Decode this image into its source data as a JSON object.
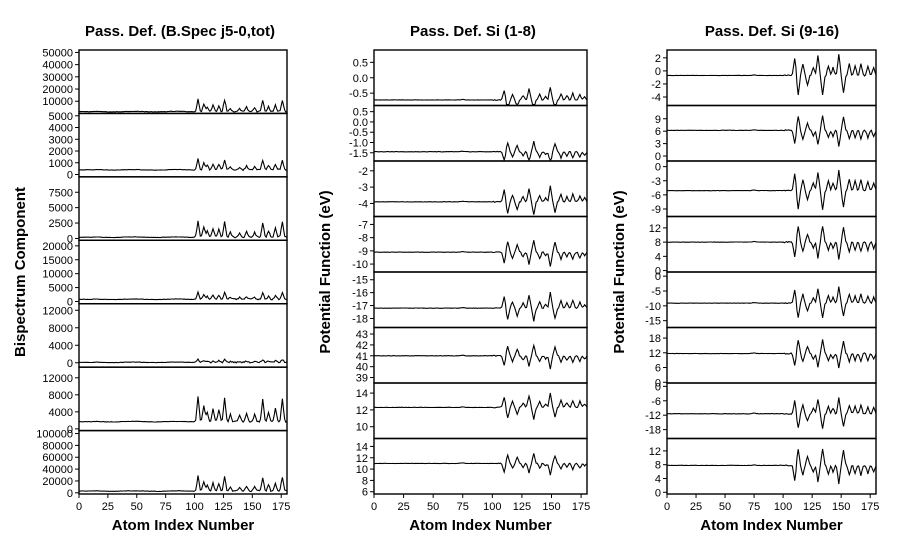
{
  "chart_data": [
    {
      "type": "line",
      "title": "Pass. Def. (B.Spec j5-0,tot)",
      "xlabel": "Atom Index Number",
      "ylabel": "Bispectrum Component",
      "x_ticks": [
        "0",
        "25",
        "50",
        "75",
        "100",
        "125",
        "150",
        "175"
      ],
      "xlim": [
        0,
        180
      ],
      "panels": [
        {
          "y_ticks": [
            "50000",
            "40000",
            "30000",
            "20000",
            "10000"
          ],
          "ylim": [
            0,
            52000
          ],
          "baseline": 1500,
          "peak": 10000
        },
        {
          "y_ticks": [
            "5000",
            "4000",
            "3000",
            "2000",
            "1000",
            "0"
          ],
          "ylim": [
            -200,
            5200
          ],
          "baseline": 400,
          "peak": 900
        },
        {
          "y_ticks": [
            "7500",
            "5000",
            "2500",
            "0"
          ],
          "ylim": [
            -300,
            10000
          ],
          "baseline": 200,
          "peak": 2700
        },
        {
          "y_ticks": [
            "20000",
            "15000",
            "10000",
            "5000",
            "0"
          ],
          "ylim": [
            -800,
            22000
          ],
          "baseline": 800,
          "peak": 2600
        },
        {
          "y_ticks": [
            "12000",
            "8000",
            "4000",
            "0"
          ],
          "ylim": [
            -1000,
            13500
          ],
          "baseline": 100,
          "peak": 700
        },
        {
          "y_ticks": [
            "12000",
            "8000",
            "4000",
            "0"
          ],
          "ylim": [
            -400,
            14500
          ],
          "baseline": 1700,
          "peak": 5800
        },
        {
          "y_ticks": [
            "100000",
            "80000",
            "60000",
            "40000",
            "20000",
            "0"
          ],
          "ylim": [
            -2000,
            105000
          ],
          "baseline": 3000,
          "peak": 25000
        }
      ]
    },
    {
      "type": "line",
      "title": "Pass. Def. Si (1-8)",
      "xlabel": "Atom Index Number",
      "ylabel": "Potential Function (eV)",
      "x_ticks": [
        "0",
        "25",
        "50",
        "75",
        "100",
        "125",
        "150",
        "175"
      ],
      "xlim": [
        0,
        180
      ],
      "panels": [
        {
          "y_ticks": [
            "0.5",
            "0.0",
            "-0.5"
          ],
          "ylim": [
            -0.9,
            0.9
          ],
          "baseline": -0.72,
          "peak": 0.35
        },
        {
          "y_ticks": [
            "0.5",
            "0.0",
            "-0.5",
            "-1.0",
            "-1.5"
          ],
          "ylim": [
            -1.9,
            0.8
          ],
          "baseline": -1.45,
          "peak": 0.5
        },
        {
          "y_ticks": [
            "-2",
            "-3",
            "-4"
          ],
          "ylim": [
            -4.8,
            -1.4
          ],
          "baseline": -3.9,
          "peak": 0.8
        },
        {
          "y_ticks": [
            "-7",
            "-8",
            "-9",
            "-10"
          ],
          "ylim": [
            -10.6,
            -6.4
          ],
          "baseline": -9.1,
          "peak": 0.9
        },
        {
          "y_ticks": [
            "-15",
            "-16",
            "-17",
            "-18"
          ],
          "ylim": [
            -18.7,
            -14.4
          ],
          "baseline": -17.2,
          "peak": 1.0
        },
        {
          "y_ticks": [
            "43",
            "42",
            "41",
            "40",
            "39"
          ],
          "ylim": [
            38.5,
            43.6
          ],
          "baseline": 41.0,
          "peak": 1.0
        },
        {
          "y_ticks": [
            "14",
            "12",
            "10"
          ],
          "ylim": [
            8.6,
            15.2
          ],
          "baseline": 12.3,
          "peak": 1.4
        },
        {
          "y_ticks": [
            "14",
            "12",
            "10",
            "8",
            "6"
          ],
          "ylim": [
            5.6,
            15.4
          ],
          "baseline": 11.0,
          "peak": 1.7
        }
      ]
    },
    {
      "type": "line",
      "title": "Pass. Def. Si (9-16)",
      "xlabel": "Atom Index Number",
      "ylabel": "Potential Function (eV)",
      "x_ticks": [
        "0",
        "25",
        "50",
        "75",
        "100",
        "125",
        "150",
        "175"
      ],
      "xlim": [
        0,
        180
      ],
      "panels": [
        {
          "y_ticks": [
            "2",
            "0",
            "-2",
            "-4"
          ],
          "ylim": [
            -5.3,
            3.2
          ],
          "baseline": -0.7,
          "peak": 3.0
        },
        {
          "y_ticks": [
            "9",
            "6",
            "3",
            "0"
          ],
          "ylim": [
            -1.2,
            12.2
          ],
          "baseline": 6.2,
          "peak": 3.5
        },
        {
          "y_ticks": [
            "0",
            "-3",
            "-6",
            "-9"
          ],
          "ylim": [
            -10.6,
            1.2
          ],
          "baseline": -5.1,
          "peak": 4.0
        },
        {
          "y_ticks": [
            "12",
            "8",
            "4",
            "0"
          ],
          "ylim": [
            -0.4,
            15.2
          ],
          "baseline": 8.0,
          "peak": 4.5
        },
        {
          "y_ticks": [
            "0",
            "-5",
            "-10",
            "-15"
          ],
          "ylim": [
            -17.3,
            1.4
          ],
          "baseline": -9.1,
          "peak": 5.0
        },
        {
          "y_ticks": [
            "18",
            "12",
            "6",
            "0"
          ],
          "ylim": [
            -0.3,
            22.3
          ],
          "baseline": 11.7,
          "peak": 5.5
        },
        {
          "y_ticks": [
            "0",
            "-6",
            "-12",
            "-18"
          ],
          "ylim": [
            -21.7,
            1.4
          ],
          "baseline": -11.4,
          "peak": 6.0
        },
        {
          "y_ticks": [
            "12",
            "8",
            "4",
            "0"
          ],
          "ylim": [
            -0.5,
            15.6
          ],
          "baseline": 7.8,
          "peak": 4.8
        }
      ]
    }
  ]
}
